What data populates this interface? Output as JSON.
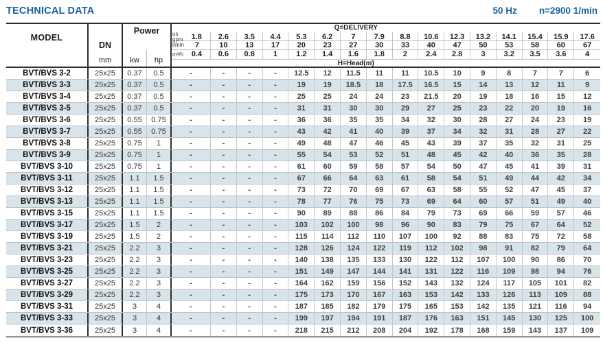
{
  "header": {
    "title": "TECHNICAL DATA",
    "frequency": "50 Hz",
    "speed": "n=2900 1/min"
  },
  "table": {
    "columns": {
      "model": "MODEL",
      "dn": "DN",
      "dn_unit": "mm",
      "power": "Power",
      "kw": "kw",
      "hp": "hp",
      "delivery_label": "Q=DELIVERY",
      "head_prefix": "H=Head(",
      "head_unit": "m",
      "head_suffix": ")"
    },
    "unit_rows": [
      {
        "label_top": "us",
        "label": "gpm",
        "values": [
          "1.8",
          "2.6",
          "3.5",
          "4.4",
          "5.3",
          "6.2",
          "7",
          "7.9",
          "8.8",
          "10.6",
          "12.3",
          "13.2",
          "14.1",
          "15.4",
          "15.9",
          "17.6"
        ]
      },
      {
        "label_top": "",
        "label": "l/min",
        "values": [
          "7",
          "10",
          "13",
          "17",
          "20",
          "23",
          "27",
          "30",
          "33",
          "40",
          "47",
          "50",
          "53",
          "58",
          "60",
          "67"
        ]
      },
      {
        "label_top": "",
        "label": "m³/h",
        "values": [
          "0.4",
          "0.6",
          "0.8",
          "1",
          "1.2",
          "1.4",
          "1.6",
          "1.8",
          "2",
          "2.4",
          "2.8",
          "3",
          "3.2",
          "3.5",
          "3.6",
          "4"
        ]
      }
    ],
    "rows": [
      {
        "model": "BVT/BVS 3-2",
        "dn": "25x25",
        "kw": "0.37",
        "hp": "0.5",
        "heads": [
          "-",
          "-",
          "-",
          "-",
          "12.5",
          "12",
          "11.5",
          "11",
          "11",
          "10.5",
          "10",
          "9",
          "8",
          "7",
          "7",
          "6"
        ]
      },
      {
        "model": "BVT/BVS 3-3",
        "dn": "25x25",
        "kw": "0.37",
        "hp": "0.5",
        "heads": [
          "-",
          "-",
          "-",
          "-",
          "19",
          "19",
          "18.5",
          "18",
          "17.5",
          "16.5",
          "15",
          "14",
          "13",
          "12",
          "11",
          "9"
        ]
      },
      {
        "model": "BVT/BVS 3-4",
        "dn": "25x25",
        "kw": "0.37",
        "hp": "0.5",
        "heads": [
          "-",
          "-",
          "-",
          "-",
          "25",
          "25",
          "24",
          "24",
          "23",
          "21.5",
          "20",
          "19",
          "18",
          "16",
          "15",
          "12"
        ]
      },
      {
        "model": "BVT/BVS 3-5",
        "dn": "25x25",
        "kw": "0.37",
        "hp": "0.5",
        "heads": [
          "-",
          "-",
          "-",
          "-",
          "31",
          "31",
          "30",
          "30",
          "29",
          "27",
          "25",
          "23",
          "22",
          "20",
          "19",
          "16"
        ]
      },
      {
        "model": "BVT/BVS 3-6",
        "dn": "25x25",
        "kw": "0.55",
        "hp": "0.75",
        "heads": [
          "-",
          "-",
          "-",
          "-",
          "36",
          "36",
          "35",
          "35",
          "34",
          "32",
          "30",
          "28",
          "27",
          "24",
          "23",
          "19"
        ]
      },
      {
        "model": "BVT/BVS 3-7",
        "dn": "25x25",
        "kw": "0.55",
        "hp": "0.75",
        "heads": [
          "-",
          "-",
          "-",
          "-",
          "43",
          "42",
          "41",
          "40",
          "39",
          "37",
          "34",
          "32",
          "31",
          "28",
          "27",
          "22"
        ]
      },
      {
        "model": "BVT/BVS 3-8",
        "dn": "25x25",
        "kw": "0.75",
        "hp": "1",
        "heads": [
          "-",
          "-",
          "-",
          "-",
          "49",
          "48",
          "47",
          "46",
          "45",
          "43",
          "39",
          "37",
          "35",
          "32",
          "31",
          "25"
        ]
      },
      {
        "model": "BVT/BVS 3-9",
        "dn": "25x25",
        "kw": "0.75",
        "hp": "1",
        "heads": [
          "-",
          "-",
          "-",
          "-",
          "55",
          "54",
          "53",
          "52",
          "51",
          "48",
          "45",
          "42",
          "40",
          "36",
          "35",
          "28"
        ]
      },
      {
        "model": "BVT/BVS 3-10",
        "dn": "25x25",
        "kw": "0.75",
        "hp": "1",
        "heads": [
          "-",
          "-",
          "-",
          "-",
          "61",
          "60",
          "59",
          "58",
          "57",
          "54",
          "50",
          "47",
          "45",
          "41",
          "39",
          "31"
        ]
      },
      {
        "model": "BVT/BVS 3-11",
        "dn": "25x25",
        "kw": "1.1",
        "hp": "1.5",
        "heads": [
          "-",
          "-",
          "-",
          "-",
          "67",
          "66",
          "64",
          "63",
          "61",
          "58",
          "54",
          "51",
          "49",
          "44",
          "42",
          "34"
        ]
      },
      {
        "model": "BVT/BVS 3-12",
        "dn": "25x25",
        "kw": "1.1",
        "hp": "1.5",
        "heads": [
          "-",
          "-",
          "-",
          "-",
          "73",
          "72",
          "70",
          "69",
          "67",
          "63",
          "58",
          "55",
          "52",
          "47",
          "45",
          "37"
        ]
      },
      {
        "model": "BVT/BVS 3-13",
        "dn": "25x25",
        "kw": "1.1",
        "hp": "1.5",
        "heads": [
          "-",
          "-",
          "-",
          "-",
          "78",
          "77",
          "76",
          "75",
          "73",
          "69",
          "64",
          "60",
          "57",
          "51",
          "49",
          "40"
        ]
      },
      {
        "model": "BVT/BVS 3-15",
        "dn": "25x25",
        "kw": "1.1",
        "hp": "1.5",
        "heads": [
          "-",
          "-",
          "-",
          "-",
          "90",
          "89",
          "88",
          "86",
          "84",
          "79",
          "73",
          "69",
          "66",
          "59",
          "57",
          "46"
        ]
      },
      {
        "model": "BVT/BVS 3-17",
        "dn": "25x25",
        "kw": "1.5",
        "hp": "2",
        "heads": [
          "-",
          "-",
          "-",
          "-",
          "103",
          "102",
          "100",
          "98",
          "96",
          "90",
          "83",
          "79",
          "75",
          "67",
          "64",
          "52"
        ]
      },
      {
        "model": "BVT/BVS 3-19",
        "dn": "25x25",
        "kw": "1.5",
        "hp": "2",
        "heads": [
          "-",
          "-",
          "-",
          "-",
          "115",
          "114",
          "112",
          "110",
          "107",
          "100",
          "92",
          "88",
          "83",
          "75",
          "72",
          "58"
        ]
      },
      {
        "model": "BVT/BVS 3-21",
        "dn": "25x25",
        "kw": "2.2",
        "hp": "3",
        "heads": [
          "-",
          "-",
          "-",
          "-",
          "128",
          "126",
          "124",
          "122",
          "119",
          "112",
          "102",
          "98",
          "91",
          "82",
          "79",
          "64"
        ]
      },
      {
        "model": "BVT/BVS 3-23",
        "dn": "25x25",
        "kw": "2.2",
        "hp": "3",
        "heads": [
          "-",
          "-",
          "-",
          "-",
          "140",
          "138",
          "135",
          "133",
          "130",
          "122",
          "112",
          "107",
          "100",
          "90",
          "86",
          "70"
        ]
      },
      {
        "model": "BVT/BVS 3-25",
        "dn": "25x25",
        "kw": "2.2",
        "hp": "3",
        "heads": [
          "-",
          "-",
          "-",
          "-",
          "151",
          "149",
          "147",
          "144",
          "141",
          "131",
          "122",
          "116",
          "109",
          "98",
          "94",
          "76"
        ]
      },
      {
        "model": "BVT/BVS 3-27",
        "dn": "25x25",
        "kw": "2.2",
        "hp": "3",
        "heads": [
          "-",
          "-",
          "-",
          "-",
          "164",
          "162",
          "159",
          "156",
          "152",
          "143",
          "132",
          "124",
          "117",
          "105",
          "101",
          "82"
        ]
      },
      {
        "model": "BVT/BVS 3-29",
        "dn": "25x25",
        "kw": "2.2",
        "hp": "3",
        "heads": [
          "-",
          "-",
          "-",
          "-",
          "175",
          "173",
          "170",
          "167",
          "163",
          "153",
          "142",
          "133",
          "126",
          "113",
          "109",
          "88"
        ]
      },
      {
        "model": "BVT/BVS 3-31",
        "dn": "25x25",
        "kw": "3",
        "hp": "4",
        "heads": [
          "-",
          "-",
          "-",
          "-",
          "187",
          "185",
          "182",
          "179",
          "175",
          "165",
          "153",
          "142",
          "135",
          "121",
          "116",
          "94"
        ]
      },
      {
        "model": "BVT/BVS 3-33",
        "dn": "25x25",
        "kw": "3",
        "hp": "4",
        "heads": [
          "-",
          "-",
          "-",
          "-",
          "199",
          "197",
          "194",
          "191",
          "187",
          "176",
          "163",
          "151",
          "145",
          "130",
          "125",
          "100"
        ]
      },
      {
        "model": "BVT/BVS 3-36",
        "dn": "25x25",
        "kw": "3",
        "hp": "4",
        "heads": [
          "-",
          "-",
          "-",
          "-",
          "218",
          "215",
          "212",
          "208",
          "204",
          "192",
          "178",
          "168",
          "159",
          "143",
          "137",
          "109"
        ]
      }
    ]
  }
}
